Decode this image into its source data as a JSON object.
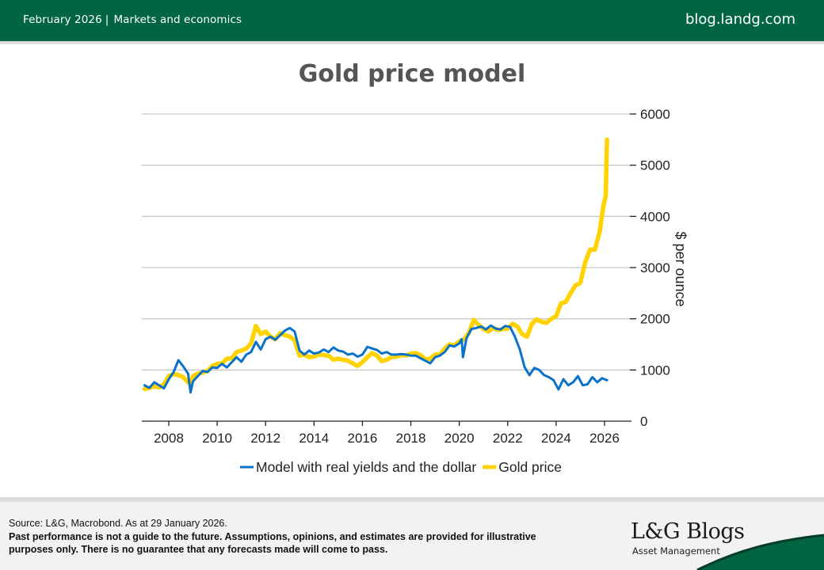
{
  "header": {
    "date": "February 2026",
    "separator": "|",
    "category": "Markets and economics",
    "site": "blog.landg.com"
  },
  "colors": {
    "brand_green": "#006540",
    "model_line": "#0B72C9",
    "gold_line": "#FFD200",
    "gridline": "#C8C8C8"
  },
  "chart_data": {
    "type": "line",
    "title": "Gold price model",
    "xlabel": "",
    "ylabel": "$ per ounce",
    "y_axis_side": "right",
    "ylim": [
      0,
      6000
    ],
    "yticks": [
      0,
      1000,
      2000,
      3000,
      4000,
      5000,
      6000
    ],
    "ytick_labels": [
      "0",
      "1000",
      "2000",
      "3000",
      "4000",
      "5000",
      "6000"
    ],
    "xlim": [
      2006.9,
      2027.2
    ],
    "xticks": [
      2008,
      2010,
      2012,
      2014,
      2016,
      2018,
      2020,
      2022,
      2024,
      2026
    ],
    "xtick_labels": [
      "2008",
      "2010",
      "2012",
      "2014",
      "2016",
      "2018",
      "2020",
      "2022",
      "2024",
      "2026"
    ],
    "grid": "horizontal",
    "legend_position": "bottom-center",
    "series": [
      {
        "name": "Model with real yields and the dollar",
        "color": "#0B72C9",
        "x": [
          2007.0,
          2007.2,
          2007.4,
          2007.6,
          2007.8,
          2008.0,
          2008.2,
          2008.4,
          2008.6,
          2008.8,
          2008.9,
          2009.0,
          2009.2,
          2009.4,
          2009.6,
          2009.8,
          2010.0,
          2010.2,
          2010.4,
          2010.6,
          2010.8,
          2011.0,
          2011.2,
          2011.4,
          2011.6,
          2011.8,
          2012.0,
          2012.2,
          2012.4,
          2012.6,
          2012.8,
          2013.0,
          2013.2,
          2013.4,
          2013.6,
          2013.8,
          2014.0,
          2014.2,
          2014.4,
          2014.6,
          2014.8,
          2015.0,
          2015.2,
          2015.4,
          2015.6,
          2015.8,
          2016.0,
          2016.2,
          2016.4,
          2016.6,
          2016.8,
          2017.0,
          2017.2,
          2017.4,
          2017.6,
          2017.8,
          2018.0,
          2018.2,
          2018.4,
          2018.6,
          2018.8,
          2019.0,
          2019.2,
          2019.4,
          2019.6,
          2019.8,
          2020.0,
          2020.1,
          2020.15,
          2020.3,
          2020.5,
          2020.7,
          2020.9,
          2021.1,
          2021.3,
          2021.5,
          2021.7,
          2021.9,
          2022.1,
          2022.3,
          2022.5,
          2022.7,
          2022.9,
          2023.1,
          2023.3,
          2023.5,
          2023.7,
          2023.9,
          2024.1,
          2024.3,
          2024.5,
          2024.7,
          2024.9,
          2025.1,
          2025.3,
          2025.5,
          2025.7,
          2025.9,
          2026.1
        ],
        "values": [
          700,
          650,
          760,
          700,
          640,
          820,
          960,
          1190,
          1070,
          930,
          560,
          780,
          880,
          980,
          960,
          1050,
          1040,
          1120,
          1050,
          1150,
          1250,
          1160,
          1300,
          1350,
          1550,
          1400,
          1600,
          1650,
          1590,
          1680,
          1770,
          1820,
          1750,
          1380,
          1300,
          1380,
          1320,
          1340,
          1400,
          1350,
          1440,
          1380,
          1360,
          1300,
          1320,
          1260,
          1300,
          1450,
          1420,
          1390,
          1320,
          1350,
          1300,
          1300,
          1310,
          1300,
          1280,
          1280,
          1230,
          1180,
          1130,
          1250,
          1280,
          1350,
          1480,
          1460,
          1520,
          1600,
          1250,
          1620,
          1800,
          1820,
          1850,
          1790,
          1870,
          1810,
          1790,
          1860,
          1840,
          1650,
          1400,
          1050,
          900,
          1040,
          1000,
          900,
          860,
          800,
          620,
          820,
          700,
          760,
          880,
          700,
          720,
          860,
          760,
          840,
          800
        ]
      },
      {
        "name": "Gold price",
        "color": "#FFD200",
        "x": [
          2007.0,
          2007.2,
          2007.4,
          2007.6,
          2007.8,
          2008.0,
          2008.2,
          2008.4,
          2008.6,
          2008.8,
          2008.9,
          2009.0,
          2009.2,
          2009.4,
          2009.6,
          2009.8,
          2010.0,
          2010.2,
          2010.4,
          2010.6,
          2010.8,
          2011.0,
          2011.2,
          2011.4,
          2011.6,
          2011.8,
          2012.0,
          2012.2,
          2012.4,
          2012.6,
          2012.8,
          2013.0,
          2013.2,
          2013.4,
          2013.6,
          2013.8,
          2014.0,
          2014.2,
          2014.4,
          2014.6,
          2014.8,
          2015.0,
          2015.2,
          2015.4,
          2015.6,
          2015.8,
          2016.0,
          2016.2,
          2016.4,
          2016.6,
          2016.8,
          2017.0,
          2017.2,
          2017.4,
          2017.6,
          2017.8,
          2018.0,
          2018.2,
          2018.4,
          2018.6,
          2018.8,
          2019.0,
          2019.2,
          2019.4,
          2019.6,
          2019.8,
          2020.0,
          2020.2,
          2020.4,
          2020.6,
          2020.8,
          2021.0,
          2021.2,
          2021.4,
          2021.6,
          2021.8,
          2022.0,
          2022.2,
          2022.4,
          2022.6,
          2022.8,
          2023.0,
          2023.2,
          2023.4,
          2023.6,
          2023.8,
          2024.0,
          2024.2,
          2024.4,
          2024.6,
          2024.8,
          2025.0,
          2025.2,
          2025.4,
          2025.6,
          2025.8,
          2025.95,
          2026.05,
          2026.1
        ],
        "values": [
          630,
          650,
          680,
          660,
          720,
          880,
          920,
          900,
          860,
          760,
          720,
          880,
          930,
          950,
          980,
          1080,
          1120,
          1130,
          1220,
          1230,
          1350,
          1380,
          1420,
          1520,
          1860,
          1700,
          1750,
          1650,
          1600,
          1720,
          1680,
          1650,
          1580,
          1280,
          1300,
          1250,
          1260,
          1300,
          1290,
          1280,
          1200,
          1220,
          1200,
          1180,
          1130,
          1080,
          1150,
          1250,
          1330,
          1280,
          1170,
          1200,
          1250,
          1260,
          1290,
          1280,
          1320,
          1330,
          1290,
          1210,
          1220,
          1300,
          1300,
          1420,
          1500,
          1480,
          1560,
          1600,
          1730,
          1980,
          1880,
          1800,
          1750,
          1820,
          1780,
          1800,
          1810,
          1900,
          1850,
          1700,
          1650,
          1900,
          1990,
          1940,
          1920,
          2000,
          2050,
          2300,
          2330,
          2500,
          2650,
          2700,
          3100,
          3350,
          3350,
          3700,
          4200,
          4400,
          5500
        ]
      }
    ]
  },
  "footer": {
    "source": "Source: L&G, Macrobond. As at 29 January 2026.",
    "disclaimer": "Past performance is not a guide to the future. Assumptions, opinions, and estimates are provided for illustrative purposes only. There is no guarantee that any forecasts made will come to pass.",
    "logo_main": "L&G Blogs",
    "logo_sub": "Asset Management"
  }
}
